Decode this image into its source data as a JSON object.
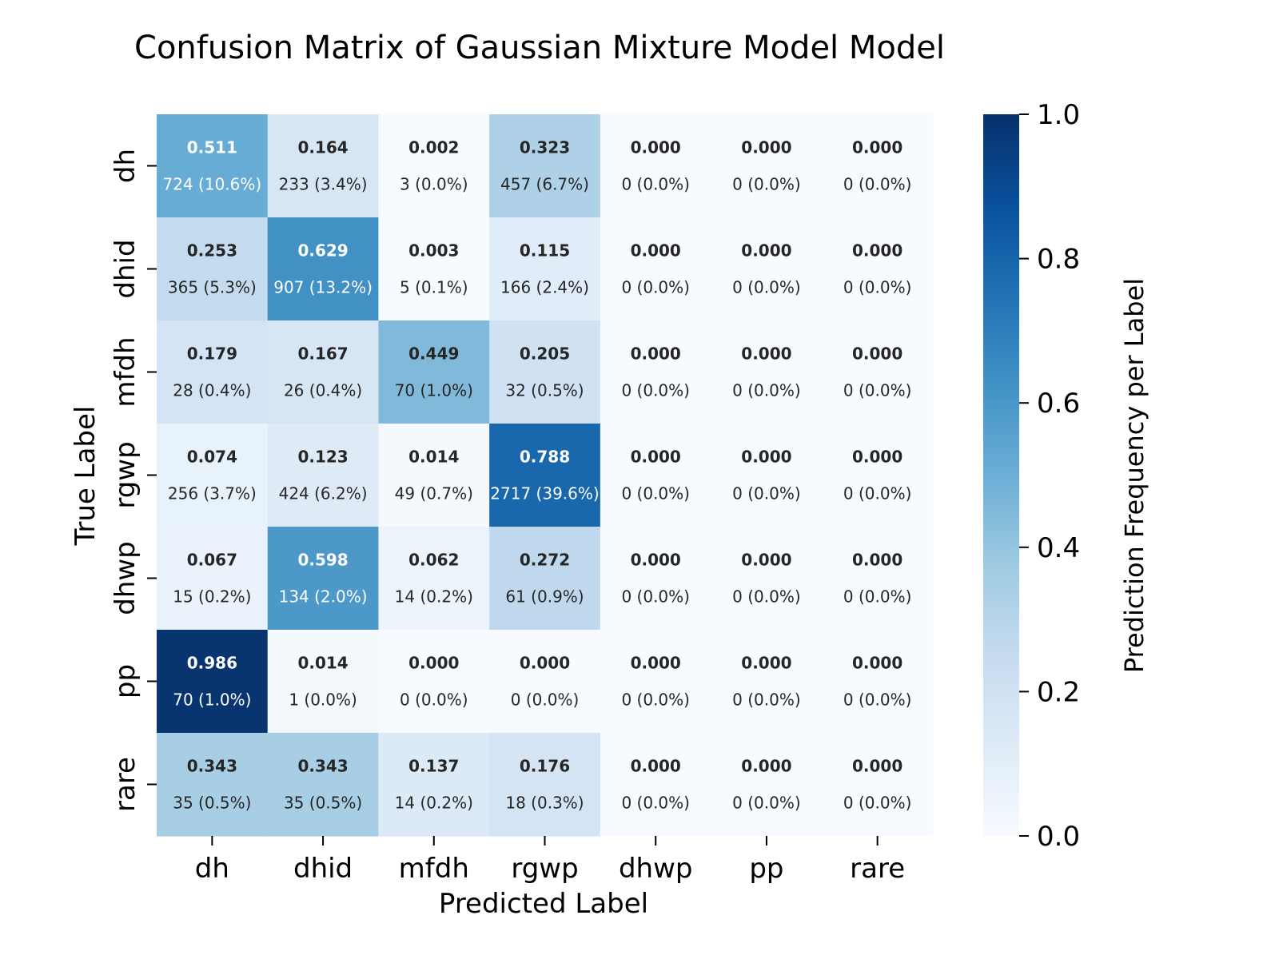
{
  "chart_data": {
    "type": "heatmap",
    "title": "Confusion Matrix of Gaussian Mixture Model Model",
    "xlabel": "Predicted Label",
    "ylabel": "True Label",
    "x_categories": [
      "dh",
      "dhid",
      "mfdh",
      "rgwp",
      "dhwp",
      "pp",
      "rare"
    ],
    "y_categories": [
      "dh",
      "dhid",
      "mfdh",
      "rgwp",
      "dhwp",
      "pp",
      "rare"
    ],
    "values": [
      [
        0.511,
        0.164,
        0.002,
        0.323,
        0.0,
        0.0,
        0.0
      ],
      [
        0.253,
        0.629,
        0.003,
        0.115,
        0.0,
        0.0,
        0.0
      ],
      [
        0.179,
        0.167,
        0.449,
        0.205,
        0.0,
        0.0,
        0.0
      ],
      [
        0.074,
        0.123,
        0.014,
        0.788,
        0.0,
        0.0,
        0.0
      ],
      [
        0.067,
        0.598,
        0.062,
        0.272,
        0.0,
        0.0,
        0.0
      ],
      [
        0.986,
        0.014,
        0.0,
        0.0,
        0.0,
        0.0,
        0.0
      ],
      [
        0.343,
        0.343,
        0.137,
        0.176,
        0.0,
        0.0,
        0.0
      ]
    ],
    "value_labels": [
      [
        "0.511",
        "0.164",
        "0.002",
        "0.323",
        "0.000",
        "0.000",
        "0.000"
      ],
      [
        "0.253",
        "0.629",
        "0.003",
        "0.115",
        "0.000",
        "0.000",
        "0.000"
      ],
      [
        "0.179",
        "0.167",
        "0.449",
        "0.205",
        "0.000",
        "0.000",
        "0.000"
      ],
      [
        "0.074",
        "0.123",
        "0.014",
        "0.788",
        "0.000",
        "0.000",
        "0.000"
      ],
      [
        "0.067",
        "0.598",
        "0.062",
        "0.272",
        "0.000",
        "0.000",
        "0.000"
      ],
      [
        "0.986",
        "0.014",
        "0.000",
        "0.000",
        "0.000",
        "0.000",
        "0.000"
      ],
      [
        "0.343",
        "0.343",
        "0.137",
        "0.176",
        "0.000",
        "0.000",
        "0.000"
      ]
    ],
    "count_labels": [
      [
        "724 (10.6%)",
        "233 (3.4%)",
        "3 (0.0%)",
        "457 (6.7%)",
        "0 (0.0%)",
        "0 (0.0%)",
        "0 (0.0%)"
      ],
      [
        "365 (5.3%)",
        "907 (13.2%)",
        "5 (0.1%)",
        "166 (2.4%)",
        "0 (0.0%)",
        "0 (0.0%)",
        "0 (0.0%)"
      ],
      [
        "28 (0.4%)",
        "26 (0.4%)",
        "70 (1.0%)",
        "32 (0.5%)",
        "0 (0.0%)",
        "0 (0.0%)",
        "0 (0.0%)"
      ],
      [
        "256 (3.7%)",
        "424 (6.2%)",
        "49 (0.7%)",
        "2717 (39.6%)",
        "0 (0.0%)",
        "0 (0.0%)",
        "0 (0.0%)"
      ],
      [
        "15 (0.2%)",
        "134 (2.0%)",
        "14 (0.2%)",
        "61 (0.9%)",
        "0 (0.0%)",
        "0 (0.0%)",
        "0 (0.0%)"
      ],
      [
        "70 (1.0%)",
        "1 (0.0%)",
        "0 (0.0%)",
        "0 (0.0%)",
        "0 (0.0%)",
        "0 (0.0%)",
        "0 (0.0%)"
      ],
      [
        "35 (0.5%)",
        "35 (0.5%)",
        "14 (0.2%)",
        "18 (0.3%)",
        "0 (0.0%)",
        "0 (0.0%)",
        "0 (0.0%)"
      ]
    ],
    "colorbar": {
      "label": "Prediction Frequency per Label",
      "range": [
        0.0,
        1.0
      ],
      "ticks": [
        "0.0",
        "0.2",
        "0.4",
        "0.6",
        "0.8",
        "1.0"
      ],
      "colormap": "Blues",
      "colors": [
        "#f7fbff",
        "#deebf7",
        "#c6dbef",
        "#9ecae1",
        "#6baed6",
        "#4292c6",
        "#2171b5",
        "#08519c",
        "#08306b"
      ]
    },
    "grid": false,
    "legend": "colorbar right"
  }
}
